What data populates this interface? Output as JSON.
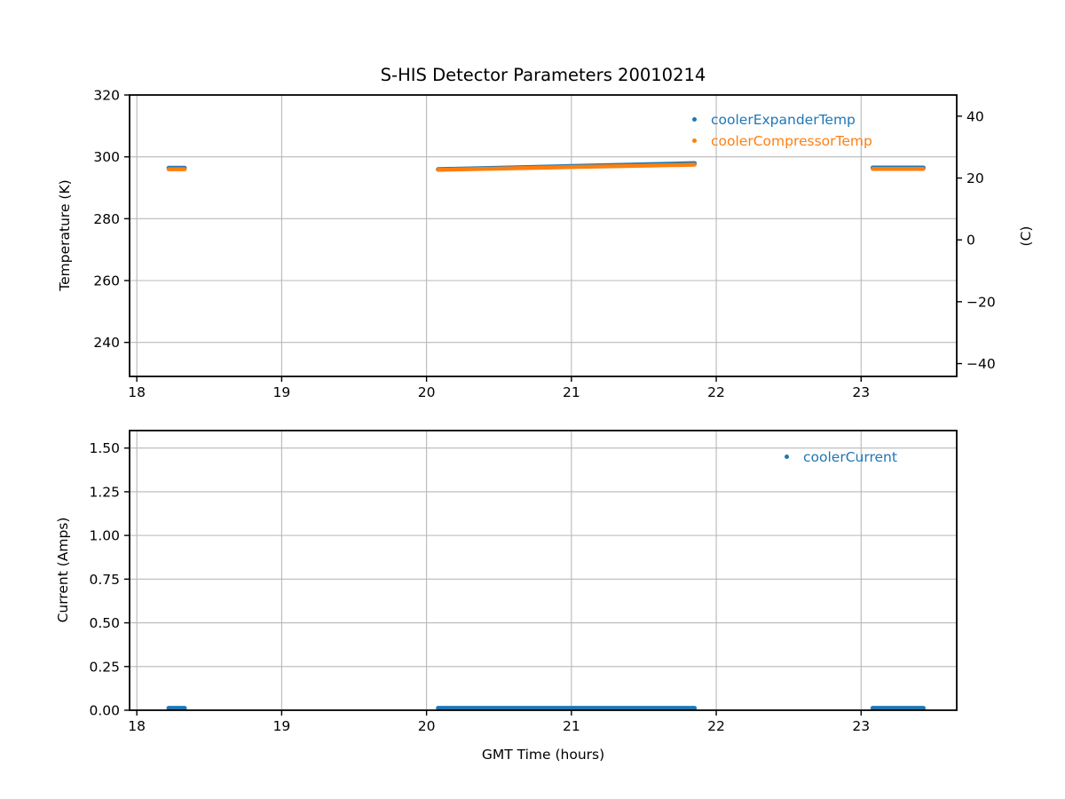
{
  "figure": {
    "background": "#ffffff"
  },
  "colors": {
    "blue": "#1f77b4",
    "orange": "#ff7f0e",
    "grid": "#b8b8b8",
    "spine": "#000000",
    "text": "#000000"
  },
  "chart_data": [
    {
      "id": "temperature-plot",
      "type": "scatter",
      "title": "S-HIS Detector Parameters 20010214",
      "xlabel": "",
      "ylabel": "Temperature (K)",
      "ylabel_right": "(C)",
      "xlim": [
        17.95,
        23.66
      ],
      "ylim": [
        229,
        320
      ],
      "ylim_right_celsius": [
        -44.15,
        46.85
      ],
      "grid": true,
      "legend": {
        "position": "upper right",
        "labels": [
          "coolerExpanderTemp",
          "coolerCompressorTemp"
        ]
      },
      "xticks": {
        "values": [
          18,
          19,
          20,
          21,
          22,
          23
        ],
        "labels": [
          "18",
          "19",
          "20",
          "21",
          "22",
          "23"
        ]
      },
      "yticks": {
        "values": [
          240,
          260,
          280,
          300,
          320
        ],
        "labels": [
          "240",
          "260",
          "280",
          "300",
          "320"
        ]
      },
      "yticks_right": {
        "kelvin_positions": [
          233.15,
          253.15,
          273.15,
          293.15,
          313.15
        ],
        "labels": [
          "−40",
          "−20",
          "0",
          "20",
          "40"
        ]
      },
      "series": [
        {
          "name": "coolerExpanderTemp",
          "color": "#1f77b4",
          "marker": "point",
          "linewidth": 5,
          "segments": [
            {
              "x": [
                18.22,
                18.33
              ],
              "y": [
                296.4,
                296.4
              ]
            },
            {
              "x": [
                20.08,
                21.0,
                21.85
              ],
              "y": [
                295.95,
                296.95,
                297.9
              ]
            },
            {
              "x": [
                23.08,
                23.43
              ],
              "y": [
                296.45,
                296.45
              ]
            }
          ]
        },
        {
          "name": "coolerCompressorTemp",
          "color": "#ff7f0e",
          "marker": "point",
          "linewidth": 4.5,
          "segments": [
            {
              "x": [
                18.22,
                18.33
              ],
              "y": [
                296.0,
                296.0
              ]
            },
            {
              "x": [
                20.08,
                21.0,
                21.85
              ],
              "y": [
                295.8,
                296.7,
                297.45
              ]
            },
            {
              "x": [
                23.08,
                23.43
              ],
              "y": [
                296.1,
                296.1
              ]
            }
          ]
        }
      ]
    },
    {
      "id": "current-plot",
      "type": "scatter",
      "title": "",
      "xlabel": "GMT Time (hours)",
      "ylabel": "Current (Amps)",
      "xlim": [
        17.95,
        23.66
      ],
      "ylim": [
        0,
        1.6
      ],
      "grid": true,
      "legend": {
        "position": "upper right",
        "labels": [
          "coolerCurrent"
        ]
      },
      "xticks": {
        "values": [
          18,
          19,
          20,
          21,
          22,
          23
        ],
        "labels": [
          "18",
          "19",
          "20",
          "21",
          "22",
          "23"
        ]
      },
      "yticks": {
        "values": [
          0,
          0.25,
          0.5,
          0.75,
          1.0,
          1.25,
          1.5
        ],
        "labels": [
          "0.00",
          "0.25",
          "0.50",
          "0.75",
          "1.00",
          "1.25",
          "1.50"
        ]
      },
      "series": [
        {
          "name": "coolerCurrent",
          "color": "#1f77b4",
          "marker": "point",
          "linewidth": 5,
          "segments": [
            {
              "x": [
                18.22,
                18.33
              ],
              "y": [
                0.012,
                0.012
              ]
            },
            {
              "x": [
                20.08,
                21.85
              ],
              "y": [
                0.012,
                0.012
              ]
            },
            {
              "x": [
                23.08,
                23.43
              ],
              "y": [
                0.012,
                0.012
              ]
            }
          ]
        }
      ]
    }
  ]
}
